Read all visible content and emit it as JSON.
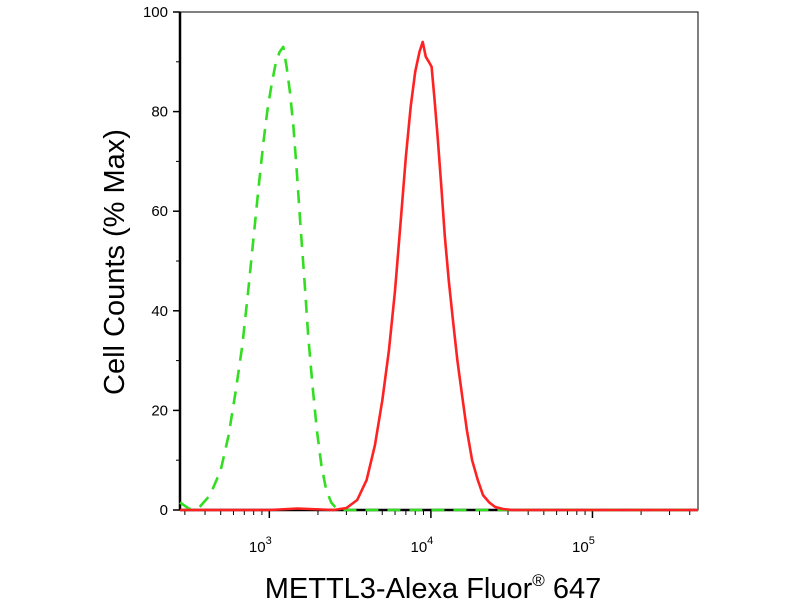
{
  "chart_data": {
    "type": "line",
    "title": "",
    "xlabel": "METTL3-Alexa Fluor",
    "xlabel_superscript": "®",
    "xlabel_suffix": " 647",
    "ylabel": "Cell Counts (% Max)",
    "xscale": "log",
    "xlim": [
      280,
      450000
    ],
    "ylim": [
      0,
      100
    ],
    "y_ticks": [
      0,
      20,
      40,
      60,
      80,
      100
    ],
    "y_tick_labels": [
      "0",
      "20",
      "40",
      "60",
      "80",
      "100"
    ],
    "x_ticks": [
      1000,
      10000,
      100000
    ],
    "x_tick_labels": [
      {
        "base": "10",
        "exp": "3"
      },
      {
        "base": "10",
        "exp": "4"
      },
      {
        "base": "10",
        "exp": "5"
      }
    ],
    "grid": false,
    "legend": "none",
    "series": [
      {
        "color": "#33dd22",
        "style": "dashed",
        "x": [
          280,
          320,
          370,
          430,
          500,
          560,
          620,
          680,
          740,
          800,
          860,
          920,
          980,
          1040,
          1100,
          1160,
          1220,
          1280,
          1340,
          1410,
          1480,
          1560,
          1650,
          1740,
          1850,
          1970,
          2100,
          2250,
          2420,
          2600,
          2800,
          3200,
          5000,
          10000,
          30000,
          100000,
          450000
        ],
        "y": [
          1.5,
          0.2,
          0.6,
          3,
          8,
          15,
          24,
          33,
          44,
          55,
          65,
          74,
          81,
          86,
          90,
          92,
          93,
          89,
          84,
          77,
          68,
          57,
          46,
          35,
          25,
          16,
          9,
          4,
          1.5,
          0.3,
          0,
          0,
          0,
          0,
          0,
          0,
          0
        ]
      },
      {
        "color": "#ff2222",
        "style": "solid",
        "x": [
          280,
          1000,
          1500,
          2500,
          3000,
          3500,
          4000,
          4500,
          5000,
          5500,
          6000,
          6500,
          7000,
          7500,
          8000,
          8500,
          8900,
          9300,
          9700,
          10100,
          10500,
          11000,
          11600,
          12200,
          12900,
          13700,
          14600,
          15600,
          16700,
          18000,
          19500,
          21000,
          23000,
          25000,
          28000,
          32000,
          40000,
          100000,
          450000
        ],
        "y": [
          0,
          0,
          0.3,
          0,
          0.4,
          2,
          6,
          13,
          22,
          32,
          44,
          58,
          71,
          81,
          88,
          92,
          94,
          91,
          90,
          89,
          83,
          75,
          65,
          55,
          46,
          38,
          30,
          23,
          16,
          10,
          6,
          3,
          1.5,
          0.6,
          0.2,
          0,
          0,
          0,
          0
        ]
      }
    ]
  }
}
